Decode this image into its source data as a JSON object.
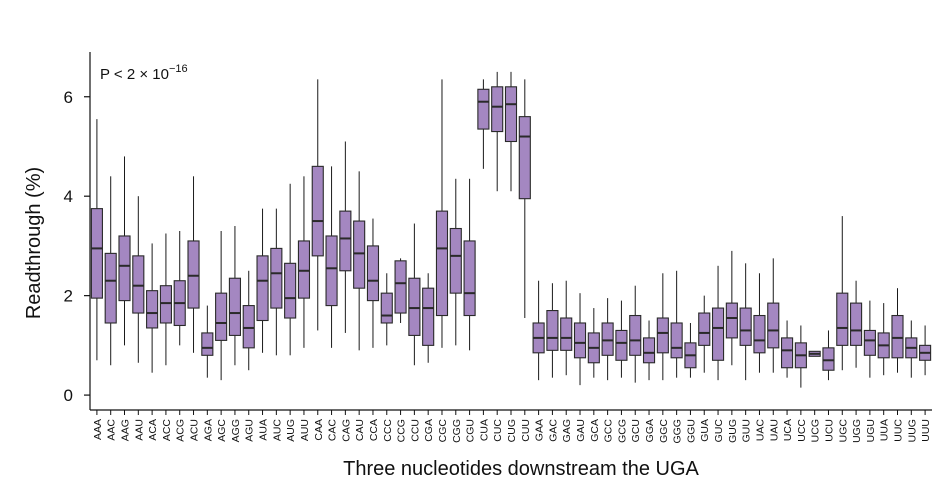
{
  "chart_data": {
    "type": "box",
    "xlabel": "Three nucleotides downstream the UGA",
    "ylabel": "Readthrough (%)",
    "annotation": {
      "prefix": "P < 2 × 10",
      "exponent": "−16"
    },
    "ylim": [
      -0.3,
      6.9
    ],
    "yticks": [
      0,
      2,
      4,
      6
    ],
    "colors": {
      "box_fill": "#a487c1",
      "box_stroke": "#2a2a2a",
      "median": "#2a2a2a",
      "whisker": "#1a1a1a",
      "axis": "#111111"
    },
    "categories": [
      "AAA",
      "AAC",
      "AAG",
      "AAU",
      "ACA",
      "ACC",
      "ACG",
      "ACU",
      "AGA",
      "AGC",
      "AGG",
      "AGU",
      "AUA",
      "AUC",
      "AUG",
      "AUU",
      "CAA",
      "CAC",
      "CAG",
      "CAU",
      "CCA",
      "CCC",
      "CCG",
      "CCU",
      "CGA",
      "CGC",
      "CGG",
      "CGU",
      "CUA",
      "CUC",
      "CUG",
      "CUU",
      "GAA",
      "GAC",
      "GAG",
      "GAU",
      "GCA",
      "GCC",
      "GCG",
      "GCU",
      "GGA",
      "GGC",
      "GGG",
      "GGU",
      "GUA",
      "GUC",
      "GUG",
      "GUU",
      "UAC",
      "UAU",
      "UCA",
      "UCC",
      "UCG",
      "UCU",
      "UGC",
      "UGG",
      "UGU",
      "UUA",
      "UUC",
      "UUG",
      "UUU"
    ],
    "boxes": [
      {
        "whislo": 0.7,
        "q1": 1.95,
        "med": 2.95,
        "q3": 3.75,
        "whishi": 5.55
      },
      {
        "whislo": 0.6,
        "q1": 1.45,
        "med": 2.3,
        "q3": 2.85,
        "whishi": 4.4
      },
      {
        "whislo": 1.0,
        "q1": 1.9,
        "med": 2.6,
        "q3": 3.2,
        "whishi": 4.8
      },
      {
        "whislo": 0.65,
        "q1": 1.65,
        "med": 2.2,
        "q3": 2.8,
        "whishi": 4.0
      },
      {
        "whislo": 0.45,
        "q1": 1.35,
        "med": 1.65,
        "q3": 2.1,
        "whishi": 3.05
      },
      {
        "whislo": 0.6,
        "q1": 1.45,
        "med": 1.85,
        "q3": 2.2,
        "whishi": 3.25
      },
      {
        "whislo": 1.0,
        "q1": 1.4,
        "med": 1.85,
        "q3": 2.3,
        "whishi": 3.3
      },
      {
        "whislo": 0.85,
        "q1": 1.75,
        "med": 2.4,
        "q3": 3.1,
        "whishi": 4.4
      },
      {
        "whislo": 0.35,
        "q1": 0.8,
        "med": 0.95,
        "q3": 1.25,
        "whishi": 1.8
      },
      {
        "whislo": 0.3,
        "q1": 1.1,
        "med": 1.45,
        "q3": 2.05,
        "whishi": 3.3
      },
      {
        "whislo": 0.6,
        "q1": 1.2,
        "med": 1.65,
        "q3": 2.35,
        "whishi": 3.4
      },
      {
        "whislo": 0.5,
        "q1": 0.95,
        "med": 1.35,
        "q3": 1.8,
        "whishi": 2.5
      },
      {
        "whislo": 0.85,
        "q1": 1.5,
        "med": 2.3,
        "q3": 2.8,
        "whishi": 3.75
      },
      {
        "whislo": 0.8,
        "q1": 1.75,
        "med": 2.45,
        "q3": 2.95,
        "whishi": 3.75
      },
      {
        "whislo": 0.8,
        "q1": 1.55,
        "med": 1.95,
        "q3": 2.65,
        "whishi": 4.25
      },
      {
        "whislo": 0.95,
        "q1": 1.95,
        "med": 2.5,
        "q3": 3.1,
        "whishi": 4.4
      },
      {
        "whislo": 1.3,
        "q1": 2.8,
        "med": 3.5,
        "q3": 4.6,
        "whishi": 6.35
      },
      {
        "whislo": 0.95,
        "q1": 1.8,
        "med": 2.55,
        "q3": 3.2,
        "whishi": 4.6
      },
      {
        "whislo": 1.25,
        "q1": 2.5,
        "med": 3.15,
        "q3": 3.7,
        "whishi": 5.1
      },
      {
        "whislo": 0.9,
        "q1": 2.15,
        "med": 2.85,
        "q3": 3.5,
        "whishi": 4.5
      },
      {
        "whislo": 0.95,
        "q1": 1.9,
        "med": 2.3,
        "q3": 3.0,
        "whishi": 3.55
      },
      {
        "whislo": 1.0,
        "q1": 1.45,
        "med": 1.6,
        "q3": 2.05,
        "whishi": 2.45
      },
      {
        "whislo": 1.45,
        "q1": 1.65,
        "med": 2.25,
        "q3": 2.7,
        "whishi": 2.75
      },
      {
        "whislo": 0.6,
        "q1": 1.2,
        "med": 1.75,
        "q3": 2.35,
        "whishi": 3.45
      },
      {
        "whislo": 0.65,
        "q1": 1.0,
        "med": 1.75,
        "q3": 2.15,
        "whishi": 2.45
      },
      {
        "whislo": 0.95,
        "q1": 1.6,
        "med": 2.95,
        "q3": 3.7,
        "whishi": 6.35
      },
      {
        "whislo": 1.0,
        "q1": 2.05,
        "med": 2.8,
        "q3": 3.35,
        "whishi": 4.35
      },
      {
        "whislo": 0.9,
        "q1": 1.6,
        "med": 2.05,
        "q3": 3.1,
        "whishi": 4.35
      },
      {
        "whislo": 4.55,
        "q1": 5.35,
        "med": 5.9,
        "q3": 6.15,
        "whishi": 6.35
      },
      {
        "whislo": 4.1,
        "q1": 5.3,
        "med": 5.8,
        "q3": 6.2,
        "whishi": 6.5
      },
      {
        "whislo": 4.1,
        "q1": 5.1,
        "med": 5.85,
        "q3": 6.2,
        "whishi": 6.5
      },
      {
        "whislo": 1.55,
        "q1": 3.95,
        "med": 5.2,
        "q3": 5.6,
        "whishi": 6.35
      },
      {
        "whislo": 0.3,
        "q1": 0.85,
        "med": 1.15,
        "q3": 1.45,
        "whishi": 2.3
      },
      {
        "whislo": 0.35,
        "q1": 0.9,
        "med": 1.15,
        "q3": 1.7,
        "whishi": 2.25
      },
      {
        "whislo": 0.4,
        "q1": 0.9,
        "med": 1.15,
        "q3": 1.55,
        "whishi": 2.3
      },
      {
        "whislo": 0.2,
        "q1": 0.75,
        "med": 1.05,
        "q3": 1.45,
        "whishi": 2.05
      },
      {
        "whislo": 0.35,
        "q1": 0.65,
        "med": 0.95,
        "q3": 1.25,
        "whishi": 1.75
      },
      {
        "whislo": 0.3,
        "q1": 0.8,
        "med": 1.1,
        "q3": 1.45,
        "whishi": 1.95
      },
      {
        "whislo": 0.35,
        "q1": 0.7,
        "med": 1.05,
        "q3": 1.3,
        "whishi": 1.9
      },
      {
        "whislo": 0.25,
        "q1": 0.8,
        "med": 1.1,
        "q3": 1.6,
        "whishi": 2.2
      },
      {
        "whislo": 0.3,
        "q1": 0.65,
        "med": 0.85,
        "q3": 1.15,
        "whishi": 1.5
      },
      {
        "whislo": 0.3,
        "q1": 0.85,
        "med": 1.25,
        "q3": 1.55,
        "whishi": 2.45
      },
      {
        "whislo": 0.35,
        "q1": 0.75,
        "med": 0.95,
        "q3": 1.45,
        "whishi": 2.5
      },
      {
        "whislo": 0.35,
        "q1": 0.55,
        "med": 0.8,
        "q3": 1.05,
        "whishi": 1.45
      },
      {
        "whislo": 0.45,
        "q1": 1.0,
        "med": 1.25,
        "q3": 1.65,
        "whishi": 2.0
      },
      {
        "whislo": 0.3,
        "q1": 0.7,
        "med": 1.35,
        "q3": 1.75,
        "whishi": 2.6
      },
      {
        "whislo": 0.6,
        "q1": 1.15,
        "med": 1.55,
        "q3": 1.85,
        "whishi": 2.9
      },
      {
        "whislo": 0.3,
        "q1": 1.0,
        "med": 1.3,
        "q3": 1.75,
        "whishi": 2.65
      },
      {
        "whislo": 0.45,
        "q1": 0.85,
        "med": 1.1,
        "q3": 1.6,
        "whishi": 2.45
      },
      {
        "whislo": 0.45,
        "q1": 0.95,
        "med": 1.3,
        "q3": 1.85,
        "whishi": 2.75
      },
      {
        "whislo": 0.35,
        "q1": 0.55,
        "med": 0.9,
        "q3": 1.15,
        "whishi": 1.5
      },
      {
        "whislo": 0.15,
        "q1": 0.55,
        "med": 0.8,
        "q3": 1.05,
        "whishi": 1.4
      },
      {
        "whislo": 0.78,
        "q1": 0.78,
        "med": 0.83,
        "q3": 0.88,
        "whishi": 0.88
      },
      {
        "whislo": 0.3,
        "q1": 0.5,
        "med": 0.7,
        "q3": 0.95,
        "whishi": 1.3
      },
      {
        "whislo": 0.5,
        "q1": 1.0,
        "med": 1.35,
        "q3": 2.05,
        "whishi": 3.6
      },
      {
        "whislo": 0.55,
        "q1": 1.0,
        "med": 1.3,
        "q3": 1.85,
        "whishi": 2.3
      },
      {
        "whislo": 0.35,
        "q1": 0.8,
        "med": 1.1,
        "q3": 1.3,
        "whishi": 1.9
      },
      {
        "whislo": 0.4,
        "q1": 0.75,
        "med": 1.0,
        "q3": 1.25,
        "whishi": 1.85
      },
      {
        "whislo": 0.45,
        "q1": 0.75,
        "med": 1.15,
        "q3": 1.6,
        "whishi": 2.15
      },
      {
        "whislo": 0.35,
        "q1": 0.75,
        "med": 0.95,
        "q3": 1.15,
        "whishi": 1.5
      },
      {
        "whislo": 0.4,
        "q1": 0.7,
        "med": 0.85,
        "q3": 1.0,
        "whishi": 1.4
      }
    ]
  }
}
